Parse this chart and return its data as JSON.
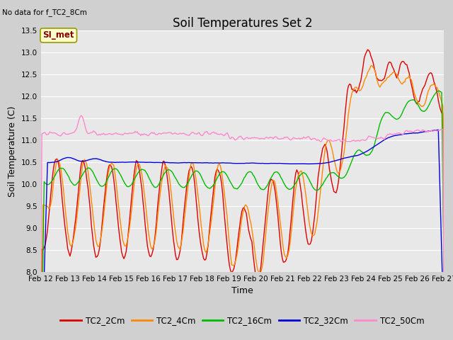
{
  "title": "Soil Temperatures Set 2",
  "xlabel": "Time",
  "ylabel": "Soil Temperature (C)",
  "top_left_text": "No data for f_TC2_8Cm",
  "annotation_text": "SI_met",
  "ylim": [
    8.0,
    13.5
  ],
  "yticks": [
    8.0,
    8.5,
    9.0,
    9.5,
    10.0,
    10.5,
    11.0,
    11.5,
    12.0,
    12.5,
    13.0,
    13.5
  ],
  "xtick_labels": [
    "Feb 12",
    "Feb 13",
    "Feb 14",
    "Feb 15",
    "Feb 16",
    "Feb 17",
    "Feb 18",
    "Feb 19",
    "Feb 20",
    "Feb 21",
    "Feb 22",
    "Feb 23",
    "Feb 24",
    "Feb 25",
    "Feb 26",
    "Feb 27"
  ],
  "series": {
    "TC2_2Cm": {
      "color": "#dd0000",
      "linewidth": 1.0
    },
    "TC2_4Cm": {
      "color": "#ff8800",
      "linewidth": 1.0
    },
    "TC2_16Cm": {
      "color": "#00bb00",
      "linewidth": 1.0
    },
    "TC2_32Cm": {
      "color": "#0000dd",
      "linewidth": 1.0
    },
    "TC2_50Cm": {
      "color": "#ff88cc",
      "linewidth": 1.0
    }
  },
  "fig_bg_color": "#d0d0d0",
  "plot_bg_color": "#e8e8e8",
  "grid_color": "#ffffff",
  "annotation_box_facecolor": "#ffffcc",
  "annotation_box_edgecolor": "#999900",
  "annotation_text_color": "#880000",
  "title_fontsize": 12,
  "axis_label_fontsize": 9,
  "tick_fontsize": 7.5,
  "legend_fontsize": 8.5
}
